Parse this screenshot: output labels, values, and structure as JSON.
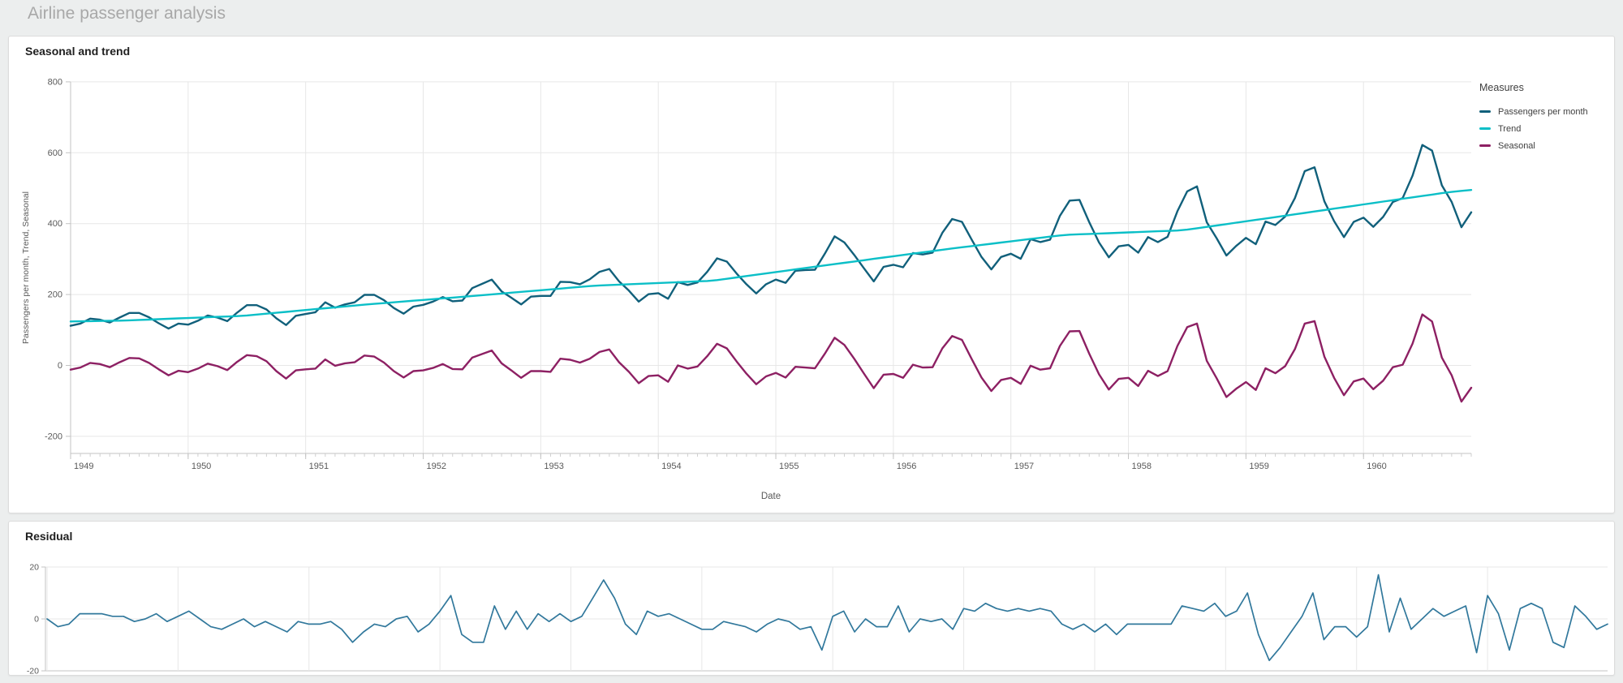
{
  "app": {
    "title": "Airline passenger analysis"
  },
  "colors": {
    "page_background": "#eceeee",
    "card_background": "#ffffff",
    "card_border": "#dcdcdc",
    "grid": "#e7e7e7",
    "axis": "#c3c3c3",
    "minor_tick": "#cfcfcf",
    "tick_text": "#595959",
    "sheet_title_text": "#a8a8a8",
    "panel_title_text": "#1f1f1f",
    "legend_text": "#404040"
  },
  "chart_data": [
    {
      "type": "line",
      "title": "Seasonal and trend",
      "xlabel": "Date",
      "ylabel": "Passengers per month, Trend, Seasonal",
      "ylim": [
        -200,
        800
      ],
      "yticks": [
        800,
        600,
        400,
        200,
        0,
        -200
      ],
      "x_tick_labels": [
        "1949",
        "1950",
        "1951",
        "1952",
        "1953",
        "1954",
        "1955",
        "1956",
        "1957",
        "1958",
        "1959",
        "1960"
      ],
      "x_months_per_tick": 12,
      "grid": true,
      "legend_title": "Measures",
      "legend_position": "right",
      "series": [
        {
          "name": "Passengers per month",
          "color": "#11607b",
          "values": [
            112,
            118,
            132,
            129,
            121,
            135,
            148,
            148,
            136,
            119,
            104,
            118,
            115,
            126,
            141,
            135,
            125,
            149,
            170,
            170,
            158,
            133,
            114,
            140,
            145,
            150,
            178,
            163,
            172,
            178,
            199,
            199,
            184,
            162,
            146,
            166,
            171,
            180,
            193,
            181,
            183,
            218,
            230,
            242,
            209,
            191,
            172,
            194,
            196,
            196,
            236,
            235,
            229,
            243,
            264,
            272,
            237,
            211,
            180,
            201,
            204,
            188,
            235,
            227,
            234,
            264,
            302,
            293,
            259,
            229,
            203,
            229,
            242,
            233,
            267,
            269,
            270,
            315,
            364,
            347,
            312,
            274,
            237,
            278,
            284,
            277,
            317,
            313,
            318,
            374,
            413,
            405,
            355,
            306,
            271,
            306,
            315,
            301,
            356,
            348,
            355,
            422,
            465,
            467,
            404,
            347,
            305,
            336,
            340,
            318,
            362,
            348,
            363,
            435,
            491,
            505,
            404,
            359,
            310,
            337,
            360,
            342,
            406,
            396,
            420,
            472,
            548,
            559,
            463,
            407,
            362,
            405,
            417,
            391,
            419,
            461,
            472,
            535,
            622,
            606,
            508,
            461,
            390,
            432
          ]
        },
        {
          "name": "Trend",
          "color": "#0bbfc7",
          "values": [
            124,
            124.5,
            125,
            125.5,
            126,
            126.4,
            127.2,
            128.3,
            129.4,
            130.5,
            131.6,
            132.7,
            133.7,
            134.8,
            135.9,
            137,
            138.1,
            139.2,
            141,
            143.5,
            146.1,
            148.6,
            151.1,
            153.7,
            156.2,
            158.8,
            161.3,
            163.8,
            166.4,
            168.9,
            171.3,
            173.6,
            175.8,
            178,
            180.3,
            182.5,
            184.7,
            187,
            189.2,
            191.4,
            193.6,
            195.9,
            198.2,
            200.5,
            202.8,
            205.2,
            207.5,
            209.8,
            212.2,
            214.5,
            216.8,
            219.2,
            221.5,
            223.8,
            225.6,
            226.7,
            227.9,
            229.1,
            230.2,
            231.4,
            232.5,
            233.7,
            234.8,
            236,
            237.2,
            238.3,
            240.8,
            244.5,
            248.3,
            252.1,
            255.8,
            259.6,
            263.3,
            267.1,
            270.9,
            274.6,
            278.4,
            282.1,
            285.8,
            289.5,
            293.2,
            296.9,
            300.6,
            304.3,
            308,
            311.7,
            315.3,
            319,
            322.7,
            326.4,
            329.9,
            333.3,
            336.6,
            340,
            343.3,
            346.7,
            350,
            353.3,
            356.7,
            360,
            363.4,
            366.7,
            368.9,
            370,
            371,
            372.1,
            373.1,
            374.2,
            375.2,
            376.3,
            377.3,
            378.4,
            379.4,
            380.5,
            383,
            386.9,
            390.9,
            394.8,
            398.7,
            402.7,
            406.6,
            410.6,
            414.5,
            418.4,
            422.4,
            426.3,
            430.3,
            434.3,
            438.3,
            442.3,
            446.3,
            450.2,
            454.2,
            458.2,
            462.2,
            466.2,
            470.2,
            474.2,
            478,
            482,
            486,
            489.5,
            492.5,
            495
          ]
        },
        {
          "name": "Seasonal",
          "color": "#8d2063",
          "values": [
            -12,
            -6,
            7,
            4,
            -5,
            9,
            21,
            20,
            7,
            -11,
            -28,
            -15,
            -19,
            -9,
            5,
            -2,
            -13,
            10,
            29,
            26,
            12,
            -16,
            -37,
            -14,
            -11,
            -9,
            17,
            -1,
            6,
            9,
            28,
            25,
            8,
            -16,
            -34,
            -16,
            -14,
            -7,
            4,
            -10,
            -11,
            22,
            32,
            42,
            6,
            -14,
            -35,
            -16,
            -16,
            -18,
            19,
            16,
            8,
            19,
            38,
            45,
            9,
            -18,
            -50,
            -30,
            -28,
            -46,
            0,
            -9,
            -3,
            26,
            61,
            48,
            11,
            -23,
            -53,
            -31,
            -21,
            -34,
            -4,
            -6,
            -8,
            33,
            78,
            58,
            19,
            -23,
            -64,
            -26,
            -24,
            -35,
            2,
            -6,
            -5,
            48,
            83,
            72,
            18,
            -34,
            -72,
            -41,
            -35,
            -52,
            -1,
            -12,
            -8,
            55,
            96,
            97,
            33,
            -25,
            -68,
            -38,
            -35,
            -58,
            -15,
            -30,
            -16,
            55,
            108,
            118,
            13,
            -36,
            -89,
            -66,
            -47,
            -69,
            -8,
            -22,
            -2,
            46,
            118,
            125,
            25,
            -35,
            -84,
            -45,
            -37,
            -67,
            -43,
            -5,
            2,
            61,
            144,
            124,
            22,
            -28,
            -102,
            -63
          ]
        }
      ]
    },
    {
      "type": "line",
      "title": "Residual",
      "xlabel": "",
      "ylabel": "",
      "ylim": [
        -20,
        20
      ],
      "yticks": [
        20,
        0,
        -20
      ],
      "x_months_per_tick": 12,
      "grid": true,
      "series": [
        {
          "name": "Residual",
          "color": "#31789c",
          "values": [
            0,
            -3,
            -2,
            2,
            2,
            2,
            1,
            1,
            -1,
            0,
            2,
            -1,
            1,
            3,
            0,
            -3,
            -4,
            -2,
            0,
            -3,
            -1,
            -3,
            -5,
            -1,
            -2,
            -2,
            -1,
            -4,
            -9,
            -5,
            -2,
            -3,
            0,
            1,
            -5,
            -2,
            3,
            9,
            -6,
            -9,
            -9,
            5,
            -4,
            3,
            -4,
            2,
            -1,
            2,
            -1,
            1,
            8,
            15,
            8,
            -2,
            -6,
            3,
            1,
            2,
            0,
            -2,
            -4,
            -4,
            -1,
            -2,
            -3,
            -5,
            -2,
            0,
            -1,
            -4,
            -3,
            -12,
            1,
            3,
            -5,
            0,
            -3,
            -3,
            5,
            -5,
            0,
            -1,
            0,
            -4,
            4,
            3,
            6,
            4,
            3,
            4,
            3,
            4,
            3,
            -2,
            -4,
            -2,
            -5,
            -2,
            -6,
            -2,
            -2,
            -2,
            -2,
            -2,
            5,
            4,
            3,
            6,
            1,
            3,
            10,
            -6,
            -16,
            -11,
            -5,
            1,
            10,
            -8,
            -3,
            -3,
            -7,
            -3,
            17,
            -5,
            8,
            -4,
            0,
            4,
            1,
            3,
            5,
            -13,
            9,
            2,
            -12,
            4,
            6,
            4,
            -9,
            -11,
            5,
            1,
            -4,
            -2
          ]
        }
      ]
    }
  ]
}
